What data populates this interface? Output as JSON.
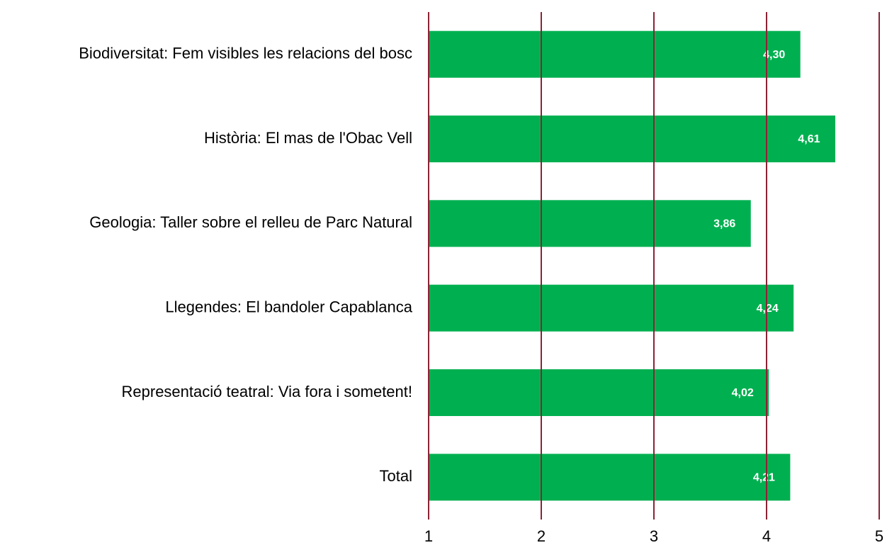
{
  "chart_data": {
    "type": "barh",
    "categories": [
      "Biodiversitat: Fem visibles les relacions del bosc",
      "Història: El mas de l'Obac Vell",
      "Geologia: Taller sobre el relleu de Parc Natural",
      "Llegendes: El bandoler Capablanca",
      "Representació teatral: Via fora i sometent!",
      "Total"
    ],
    "values": [
      4.3,
      4.61,
      3.86,
      4.24,
      4.02,
      4.21
    ],
    "value_labels": [
      "4,30",
      "4,61",
      "3,86",
      "4,24",
      "4,02",
      "4,21"
    ],
    "color": "#00b050",
    "xlim": [
      1,
      5
    ],
    "xticks": [
      1,
      2,
      3,
      4,
      5
    ],
    "grid": true,
    "grid_color": "#8b2335"
  }
}
